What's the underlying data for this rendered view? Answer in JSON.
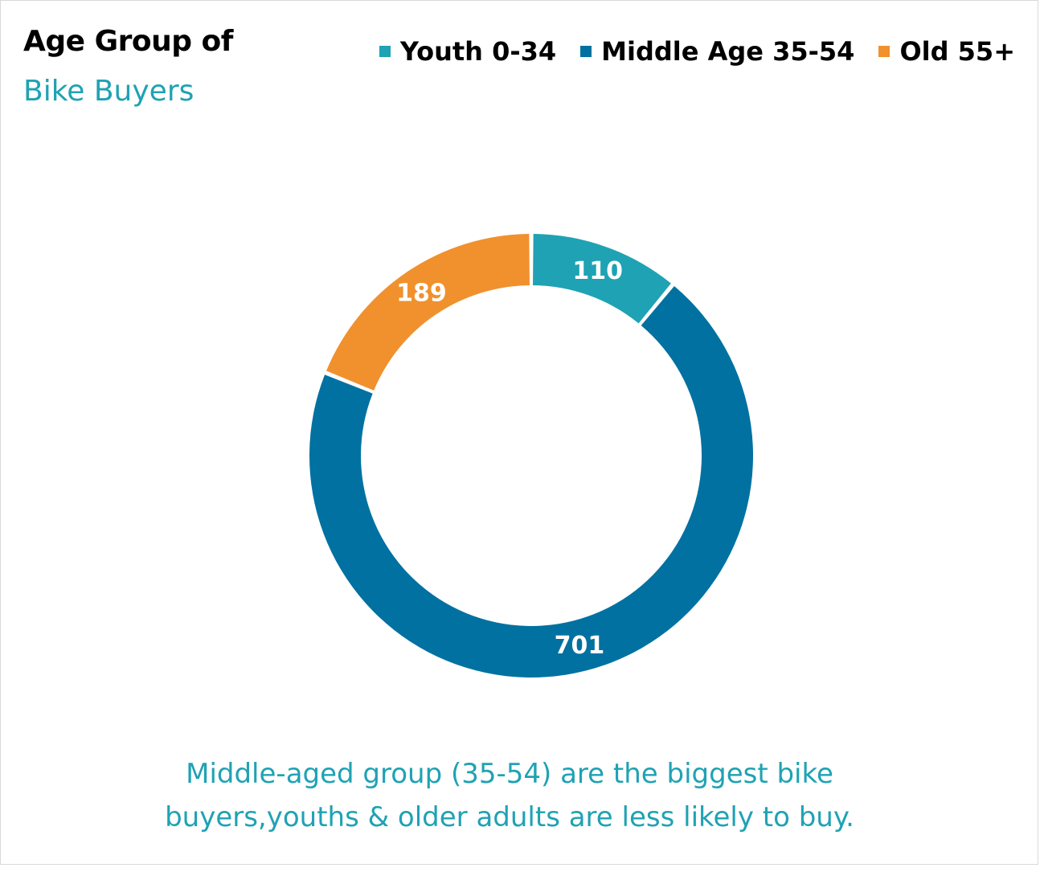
{
  "title": {
    "line1": "Age Group of",
    "line2": "Bike Buyers"
  },
  "caption": {
    "line1": "Middle-aged group (35-54) are the biggest bike",
    "line2": "buyers,youths & older adults are less likely to buy."
  },
  "colors": {
    "youth": "#1fa2b4",
    "middle": "#0071a1",
    "old": "#f0912d",
    "title_accent": "#1fa2b4"
  },
  "chart_data": {
    "type": "pie",
    "subtype": "donut",
    "title": "Age Group of Bike Buyers",
    "legend_position": "top-right",
    "series": [
      {
        "name": "Youth 0-34",
        "value": 110,
        "label": "110",
        "color": "#1fa2b4"
      },
      {
        "name": "Middle Age 35-54",
        "value": 701,
        "label": "701",
        "color": "#0071a1"
      },
      {
        "name": "Old 55+",
        "value": 189,
        "label": "189",
        "color": "#f0912d"
      }
    ]
  }
}
